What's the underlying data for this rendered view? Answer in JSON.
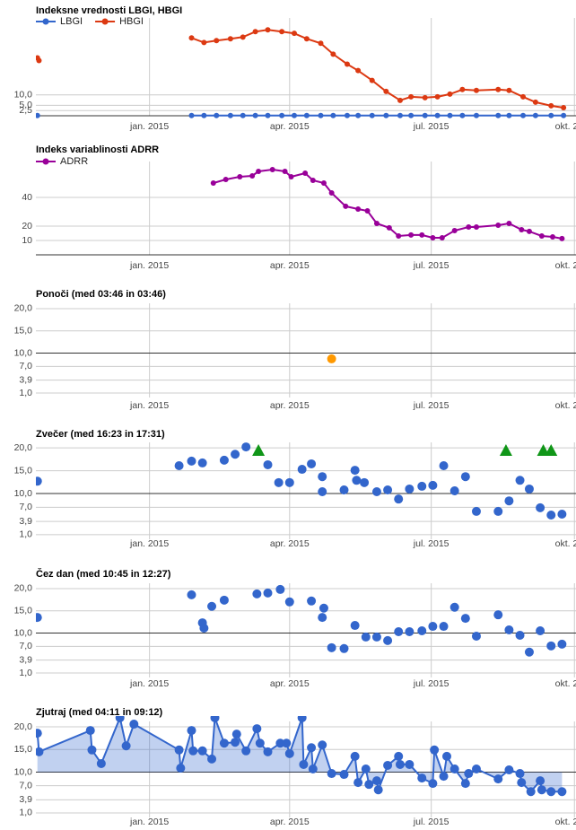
{
  "chart_data": [
    {
      "type": "line",
      "title": "Indeksne vrednosti LBGI, HBGI",
      "x": [
        "2014-10-21",
        "2014-10-22",
        "2014-12-01",
        "2015-01-28",
        "2015-02-05",
        "2015-02-13",
        "2015-02-22",
        "2015-03-02",
        "2015-03-10",
        "2015-03-18",
        "2015-03-27",
        "2015-04-04",
        "2015-04-12",
        "2015-04-21",
        "2015-04-29",
        "2015-05-08",
        "2015-05-15",
        "2015-05-24",
        "2015-06-02",
        "2015-06-11",
        "2015-06-18",
        "2015-06-27",
        "2015-07-05",
        "2015-07-13",
        "2015-07-21",
        "2015-07-30",
        "2015-08-13",
        "2015-08-20",
        "2015-08-29",
        "2015-09-06",
        "2015-09-16",
        "2015-09-24"
      ],
      "series": [
        {
          "name": "LBGI",
          "color": "#3366cc",
          "values": [
            0.1,
            null,
            null,
            0.1,
            0.1,
            0.1,
            0.1,
            0.1,
            0.1,
            0.1,
            0.1,
            0.1,
            0.1,
            0.1,
            0.1,
            0.1,
            0.1,
            0.1,
            0.1,
            0.1,
            0.1,
            0.1,
            0.1,
            0.1,
            0.1,
            0.1,
            0.1,
            0.1,
            0.1,
            0.1,
            0.1,
            0.1
          ]
        },
        {
          "name": "HBGI",
          "color": "#dc3912",
          "values": [
            27.8,
            26.5,
            null,
            37.4,
            35.2,
            36.1,
            37,
            37.8,
            40.4,
            41.3,
            40.4,
            39.6,
            37,
            34.8,
            29.6,
            24.8,
            21.7,
            17,
            11.7,
            7.4,
            9.1,
            8.7,
            9.1,
            10.4,
            12.6,
            12.2,
            12.6,
            12.2,
            9.1,
            6.5,
            4.8,
            3.9
          ]
        }
      ],
      "xlim": [
        "2014-10-20",
        "2015-10-02"
      ],
      "xticks": [
        {
          "value": "2015-01-01",
          "label": "jan. 2015"
        },
        {
          "value": "2015-04-01",
          "label": "apr. 2015"
        },
        {
          "value": "2015-07-01",
          "label": "jul. 2015"
        },
        {
          "value": "2015-10-01",
          "label": "okt. 2015"
        }
      ],
      "ylim": [
        0,
        47
      ],
      "yticks": [
        {
          "value": 10,
          "label": "10,0"
        },
        {
          "value": 5,
          "label": "5,0"
        },
        {
          "value": 2.5,
          "label": "2,5"
        }
      ],
      "grid": true,
      "legend": "top"
    },
    {
      "type": "line",
      "title": "Indeks variablinosti ADRR",
      "x": [
        "2015-02-11",
        "2015-02-19",
        "2015-02-28",
        "2015-03-08",
        "2015-03-12",
        "2015-03-21",
        "2015-03-29",
        "2015-04-02",
        "2015-04-11",
        "2015-04-16",
        "2015-04-23",
        "2015-04-28",
        "2015-05-07",
        "2015-05-15",
        "2015-05-21",
        "2015-05-27",
        "2015-06-04",
        "2015-06-10",
        "2015-06-18",
        "2015-06-25",
        "2015-07-02",
        "2015-07-08",
        "2015-07-16",
        "2015-07-25",
        "2015-07-30",
        "2015-08-13",
        "2015-08-20",
        "2015-08-28",
        "2015-09-02",
        "2015-09-10",
        "2015-09-17",
        "2015-09-23"
      ],
      "series": [
        {
          "name": "ADRR",
          "color": "#990099",
          "values": [
            50,
            52.5,
            54.4,
            55,
            58.1,
            59.4,
            58.1,
            54.4,
            56.9,
            51.9,
            50,
            43.1,
            33.8,
            31.9,
            30.6,
            21.9,
            18.8,
            13.1,
            13.8,
            13.8,
            11.9,
            11.9,
            16.9,
            19.4,
            19.4,
            20.6,
            21.9,
            17.5,
            16.3,
            13.1,
            12.5,
            11.3
          ]
        }
      ],
      "xlim": [
        "2014-10-20",
        "2015-10-02"
      ],
      "xticks": [
        {
          "value": "2015-01-01",
          "label": "jan. 2015"
        },
        {
          "value": "2015-04-01",
          "label": "apr. 2015"
        },
        {
          "value": "2015-07-01",
          "label": "jul. 2015"
        },
        {
          "value": "2015-10-01",
          "label": "okt. 2015"
        }
      ],
      "ylim": [
        0,
        65
      ],
      "yticks": [
        40,
        20,
        10
      ],
      "grid": true,
      "legend": "top"
    },
    {
      "type": "scatter",
      "title": "Ponoči (med 03:46 in 03:46)",
      "x": [
        "2015-04-28"
      ],
      "values": [
        8.7
      ],
      "color": "#ff9900",
      "xlim": [
        "2014-10-20",
        "2015-10-02"
      ],
      "xticks": [
        {
          "value": "2015-01-01",
          "label": "jan. 2015"
        },
        {
          "value": "2015-04-01",
          "label": "apr. 2015"
        },
        {
          "value": "2015-07-01",
          "label": "jul. 2015"
        },
        {
          "value": "2015-10-01",
          "label": "okt. 2015"
        }
      ],
      "ylim": [
        0,
        21.2
      ],
      "yticks": [
        {
          "value": 20,
          "label": "20,0"
        },
        {
          "value": 15,
          "label": "15,0"
        },
        {
          "value": 10,
          "label": "10,0"
        },
        {
          "value": 7,
          "label": "7,0"
        },
        {
          "value": 3.9,
          "label": "3,9"
        },
        {
          "value": 1,
          "label": "1,0"
        }
      ],
      "reference_line": 10,
      "grid": true
    },
    {
      "type": "scatter",
      "title": "Zvečer (med 16:23 in 17:31)",
      "x": [
        "2014-10-21",
        "2015-01-20",
        "2015-01-28",
        "2015-02-04",
        "2015-02-18",
        "2015-02-25",
        "2015-03-04",
        "2015-03-18",
        "2015-03-25",
        "2015-04-01",
        "2015-04-09",
        "2015-04-15",
        "2015-04-22",
        "2015-04-22",
        "2015-05-06",
        "2015-05-13",
        "2015-05-14",
        "2015-05-19",
        "2015-05-27",
        "2015-06-03",
        "2015-06-10",
        "2015-06-17",
        "2015-06-25",
        "2015-07-02",
        "2015-07-09",
        "2015-07-16",
        "2015-07-23",
        "2015-07-30",
        "2015-08-13",
        "2015-08-20",
        "2015-08-27",
        "2015-09-02",
        "2015-09-09",
        "2015-09-16",
        "2015-09-23"
      ],
      "values": [
        12.7,
        16.1,
        17.1,
        16.7,
        17.3,
        18.6,
        20.2,
        16.3,
        12.4,
        12.4,
        15.3,
        16.5,
        13.7,
        10.4,
        10.8,
        15.1,
        12.9,
        12.4,
        10.4,
        10.8,
        8.8,
        11,
        11.6,
        11.8,
        16.1,
        10.6,
        13.7,
        6.1,
        6.1,
        8.4,
        12.9,
        11,
        6.9,
        5.3,
        5.5
      ],
      "color": "#3366cc",
      "markers": {
        "color": "#109618",
        "x": [
          "2015-03-12",
          "2015-08-18",
          "2015-09-11",
          "2015-09-16"
        ]
      },
      "xlim": [
        "2014-10-20",
        "2015-10-02"
      ],
      "xticks": [
        {
          "value": "2015-01-01",
          "label": "jan. 2015"
        },
        {
          "value": "2015-04-01",
          "label": "apr. 2015"
        },
        {
          "value": "2015-07-01",
          "label": "jul. 2015"
        },
        {
          "value": "2015-10-01",
          "label": "okt. 2015"
        }
      ],
      "ylim": [
        0,
        21.2
      ],
      "yticks": [
        {
          "value": 20,
          "label": "20,0"
        },
        {
          "value": 15,
          "label": "15,0"
        },
        {
          "value": 10,
          "label": "10,0"
        },
        {
          "value": 7,
          "label": "7,0"
        },
        {
          "value": 3.9,
          "label": "3,9"
        },
        {
          "value": 1,
          "label": "1,0"
        }
      ],
      "reference_line": 10,
      "grid": true
    },
    {
      "type": "scatter",
      "title": "Čez dan (med 10:45 in 12:27)",
      "x": [
        "2014-10-21",
        "2015-01-28",
        "2015-02-04",
        "2015-02-05",
        "2015-02-10",
        "2015-02-18",
        "2015-03-11",
        "2015-03-18",
        "2015-03-26",
        "2015-04-01",
        "2015-04-15",
        "2015-04-22",
        "2015-04-23",
        "2015-04-28",
        "2015-05-06",
        "2015-05-13",
        "2015-05-20",
        "2015-05-27",
        "2015-06-03",
        "2015-06-10",
        "2015-06-17",
        "2015-06-25",
        "2015-07-02",
        "2015-07-09",
        "2015-07-16",
        "2015-07-23",
        "2015-07-30",
        "2015-08-13",
        "2015-08-20",
        "2015-08-27",
        "2015-09-02",
        "2015-09-09",
        "2015-09-16",
        "2015-09-23"
      ],
      "values": [
        13.5,
        18.6,
        12.3,
        11.1,
        16,
        17.4,
        18.8,
        19,
        19.8,
        17,
        17.2,
        13.5,
        15.6,
        6.7,
        6.5,
        11.7,
        9.1,
        9.1,
        8.3,
        10.3,
        10.3,
        10.5,
        11.5,
        11.5,
        15.8,
        13.3,
        9.3,
        14.1,
        10.7,
        9.5,
        5.7,
        10.5,
        7.1,
        7.5
      ],
      "color": "#3366cc",
      "xlim": [
        "2014-10-20",
        "2015-10-02"
      ],
      "xticks": [
        {
          "value": "2015-01-01",
          "label": "jan. 2015"
        },
        {
          "value": "2015-04-01",
          "label": "apr. 2015"
        },
        {
          "value": "2015-07-01",
          "label": "jul. 2015"
        },
        {
          "value": "2015-10-01",
          "label": "okt. 2015"
        }
      ],
      "ylim": [
        0,
        21.2
      ],
      "yticks": [
        {
          "value": 20,
          "label": "20,0"
        },
        {
          "value": 15,
          "label": "15,0"
        },
        {
          "value": 10,
          "label": "10,0"
        },
        {
          "value": 7,
          "label": "7,0"
        },
        {
          "value": 3.9,
          "label": "3,9"
        },
        {
          "value": 1,
          "label": "1,0"
        }
      ],
      "reference_line": 10,
      "grid": true
    },
    {
      "type": "area",
      "title": "Zjutraj (med 04:11 in 09:12)",
      "x": [
        "2014-10-21",
        "2014-10-22",
        "2014-11-24",
        "2014-11-25",
        "2014-12-01",
        "2014-12-13",
        "2014-12-17",
        "2014-12-22",
        "2015-01-20",
        "2015-01-21",
        "2015-01-28",
        "2015-01-29",
        "2015-02-04",
        "2015-02-10",
        "2015-02-12",
        "2015-02-18",
        "2015-02-25",
        "2015-02-26",
        "2015-03-04",
        "2015-03-11",
        "2015-03-13",
        "2015-03-18",
        "2015-03-26",
        "2015-03-30",
        "2015-04-01",
        "2015-04-09",
        "2015-04-10",
        "2015-04-15",
        "2015-04-16",
        "2015-04-22",
        "2015-04-28",
        "2015-05-06",
        "2015-05-13",
        "2015-05-15",
        "2015-05-20",
        "2015-05-22",
        "2015-05-27",
        "2015-05-28",
        "2015-06-03",
        "2015-06-10",
        "2015-06-11",
        "2015-06-17",
        "2015-06-25",
        "2015-07-02",
        "2015-07-03",
        "2015-07-09",
        "2015-07-11",
        "2015-07-16",
        "2015-07-23",
        "2015-07-25",
        "2015-07-30",
        "2015-08-13",
        "2015-08-20",
        "2015-08-27",
        "2015-08-28",
        "2015-09-03",
        "2015-09-09",
        "2015-09-10",
        "2015-09-16",
        "2015-09-23"
      ],
      "values": [
        18.6,
        14.5,
        19.2,
        14.9,
        11.9,
        22,
        15.8,
        20.6,
        14.9,
        10.9,
        19.2,
        14.7,
        14.7,
        12.9,
        22,
        16.4,
        16.6,
        18.4,
        14.7,
        19.6,
        16.4,
        14.5,
        16.4,
        16.4,
        14.1,
        22,
        11.7,
        15.4,
        10.7,
        16,
        9.7,
        9.5,
        13.5,
        7.7,
        10.7,
        7.3,
        8.1,
        6.1,
        11.5,
        13.5,
        11.7,
        11.7,
        8.7,
        7.5,
        14.9,
        9.1,
        13.5,
        10.7,
        7.5,
        9.7,
        10.7,
        8.5,
        10.5,
        9.7,
        7.7,
        5.7,
        8.1,
        6.1,
        5.7,
        5.7
      ],
      "color": "#3366cc",
      "xlim": [
        "2014-10-20",
        "2015-10-02"
      ],
      "xticks": [
        {
          "value": "2015-01-01",
          "label": "jan. 2015"
        },
        {
          "value": "2015-04-01",
          "label": "apr. 2015"
        },
        {
          "value": "2015-07-01",
          "label": "jul. 2015"
        },
        {
          "value": "2015-10-01",
          "label": "okt. 2015"
        }
      ],
      "ylim": [
        0,
        21.2
      ],
      "yticks": [
        {
          "value": 20,
          "label": "20,0"
        },
        {
          "value": 15,
          "label": "15,0"
        },
        {
          "value": 10,
          "label": "10,0"
        },
        {
          "value": 7,
          "label": "7,0"
        },
        {
          "value": 3.9,
          "label": "3,9"
        },
        {
          "value": 1,
          "label": "1,0"
        }
      ],
      "reference_line": 10,
      "grid": true
    }
  ]
}
